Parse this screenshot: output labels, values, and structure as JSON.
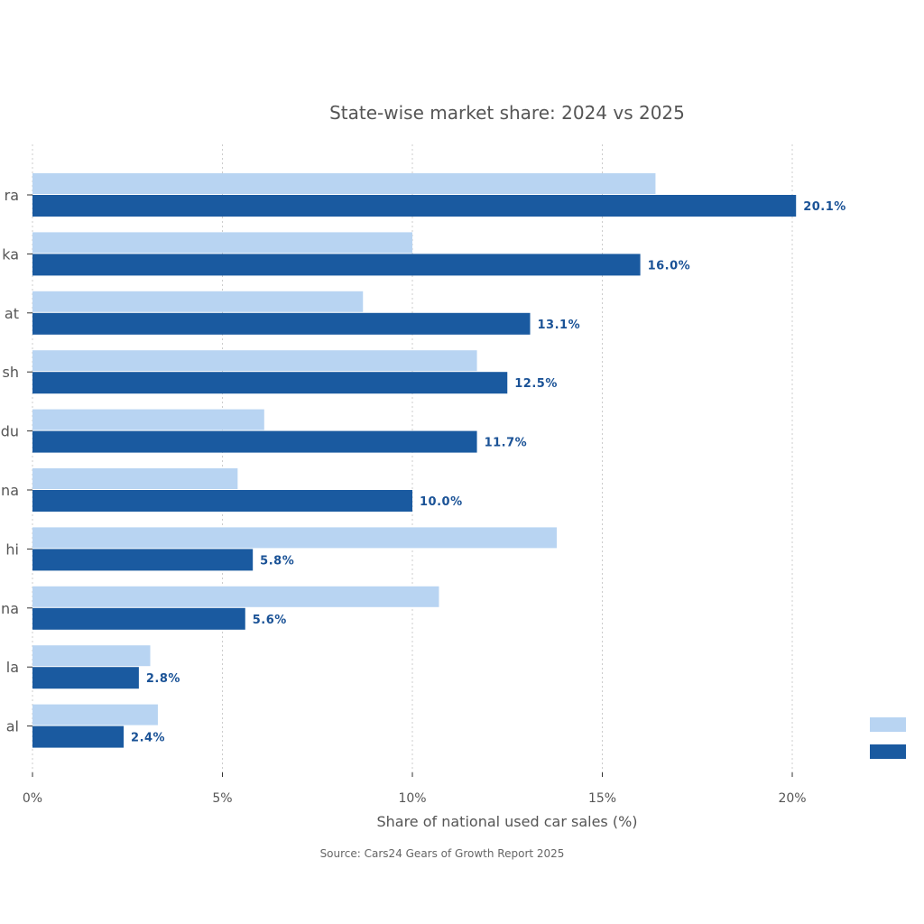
{
  "chart_data": {
    "type": "bar",
    "orientation": "horizontal",
    "title": "State-wise market share: 2024 vs 2025",
    "xlabel": "Share of national used car sales (%)",
    "source": "Source: Cars24 Gears of Growth Report 2025",
    "categories": [
      "ra",
      "ka",
      "at",
      "sh",
      "du",
      "na",
      "hi",
      "na",
      "la",
      "al"
    ],
    "series": [
      {
        "name": "",
        "color": "#b8d4f2",
        "values": [
          16.4,
          10.0,
          8.7,
          11.7,
          6.1,
          5.4,
          13.8,
          10.7,
          3.1,
          3.3
        ]
      },
      {
        "name": "",
        "color": "#1a5aa0",
        "values": [
          20.1,
          16.0,
          13.1,
          12.5,
          11.7,
          10.0,
          5.8,
          5.6,
          2.8,
          2.4
        ],
        "labels": [
          "20.1%",
          "16.0%",
          "13.1%",
          "12.5%",
          "11.7%",
          "10.0%",
          "5.8%",
          "5.6%",
          "2.8%",
          "2.4%"
        ]
      }
    ],
    "xticks": [
      0,
      5,
      10,
      15,
      20
    ],
    "xtick_labels": [
      "0%",
      "5%",
      "10%",
      "15%",
      "20%"
    ],
    "xlim": [
      0,
      23.5
    ],
    "grid": "x-dotted",
    "legend": "bottom-right"
  }
}
